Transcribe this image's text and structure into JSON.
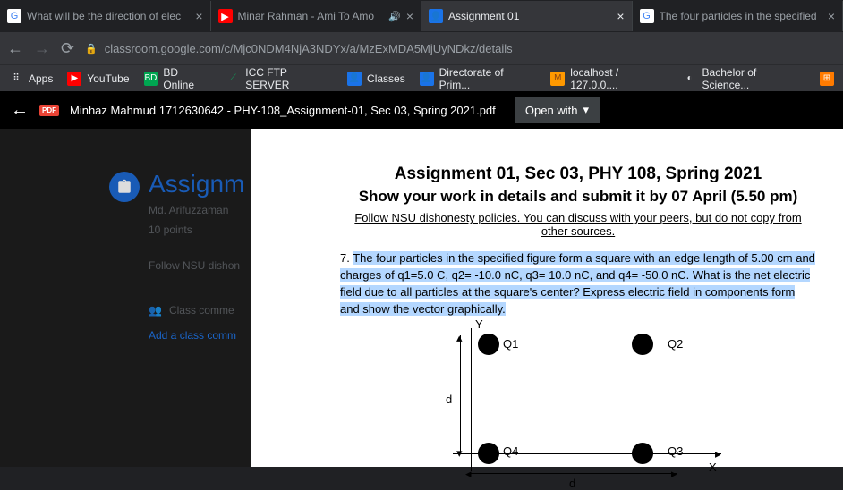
{
  "tabs": [
    {
      "title": "What will be the direction of elec",
      "favBg": "#fff",
      "favText": "G",
      "favColor": "#4285f4"
    },
    {
      "title": "Minar Rahman - Ami To Amo",
      "favBg": "#f00",
      "favText": "▶",
      "favColor": "#fff",
      "sound": true
    },
    {
      "title": "Assignment 01",
      "favBg": "#1a73e8",
      "favText": "👤",
      "favColor": "#fff",
      "active": true
    },
    {
      "title": "The four particles in the specified",
      "favBg": "#fff",
      "favText": "G",
      "favColor": "#4285f4"
    }
  ],
  "url": "classroom.google.com/c/Mjc0NDM4NjA3NDYx/a/MzExMDA5MjUyNDkz/details",
  "bookmarks": [
    {
      "label": "Apps",
      "ico": "⠿",
      "bg": "transparent",
      "color": "#e8eaed"
    },
    {
      "label": "YouTube",
      "ico": "▶",
      "bg": "#f00",
      "color": "#fff"
    },
    {
      "label": "BD Online",
      "ico": "BD",
      "bg": "#00a651",
      "color": "#fff"
    },
    {
      "label": "ICC FTP SERVER",
      "ico": "⟋",
      "bg": "transparent",
      "color": "#0f9d58"
    },
    {
      "label": "Classes",
      "ico": "👤",
      "bg": "#1a73e8",
      "color": "#fff"
    },
    {
      "label": "Directorate of Prim...",
      "ico": "👤",
      "bg": "#1a73e8",
      "color": "#fff"
    },
    {
      "label": "localhost / 127.0.0....",
      "ico": "M",
      "bg": "#f90",
      "color": "#8b4513"
    },
    {
      "label": "Bachelor of Science...",
      "ico": "◐",
      "bg": "transparent",
      "color": "#e8eaed"
    },
    {
      "label": "",
      "ico": "⊞",
      "bg": "#ff7b00",
      "color": "#fff"
    }
  ],
  "pdfBar": {
    "name": "Minhaz Mahmud 1712630642 - PHY-108_Assignment-01, Sec 03, Spring 2021.pdf",
    "openWith": "Open with"
  },
  "classroom": {
    "title": "Assignm",
    "subtitle": "Md. Arifuzzaman",
    "points": "10 points",
    "dishonesty": "Follow NSU dishon",
    "classComments": "Class comme",
    "addComment": "Add a class comm"
  },
  "pdf": {
    "h1": "Assignment 01, Sec 03, PHY 108, Spring 2021",
    "h2": "Show your work in details and submit it by 07 April (5.50 pm)",
    "h3": "Follow NSU dishonesty policies. You can discuss with your peers, but do not copy from other sources.",
    "qNum": "7. ",
    "qText": "The four particles in the specified figure form a square with an edge length of 5.00 cm and charges of q1=5.0 C, q2= -10.0 nC, q3= 10.0 nC, and q4= -50.0 nC. What is the net electric field due to all particles at the square's center? Express electric field in components form and show the vector graphically.",
    "labels": {
      "Y": "Y",
      "X": "X",
      "d1": "d",
      "d2": "d",
      "Q1": "Q1",
      "Q2": "Q2",
      "Q3": "Q3",
      "Q4": "Q4"
    }
  }
}
